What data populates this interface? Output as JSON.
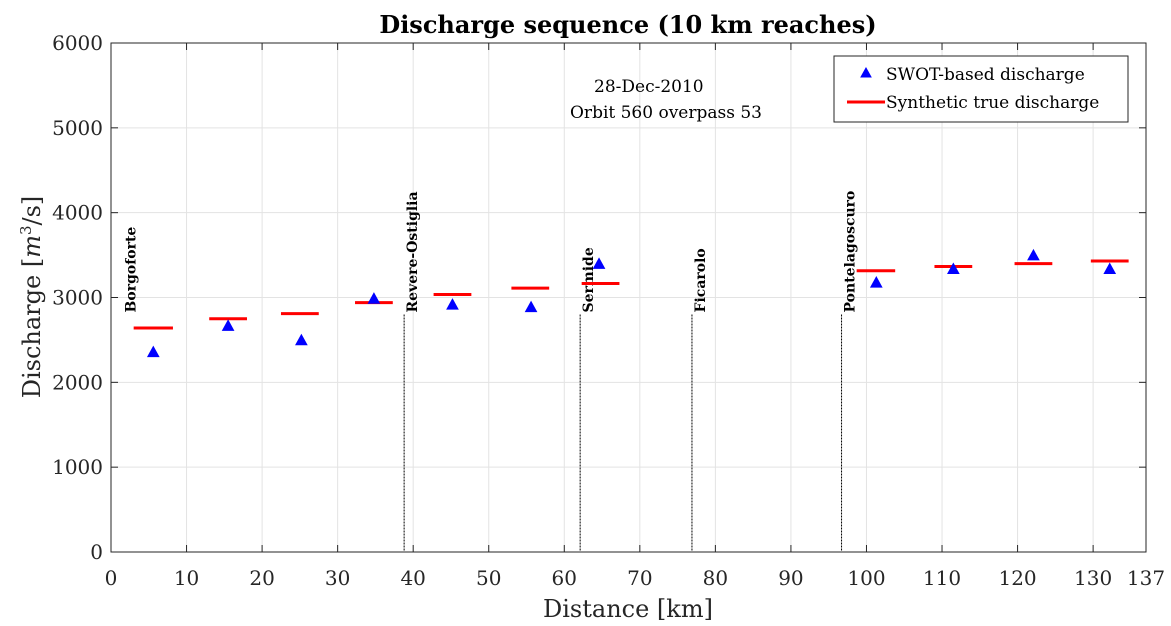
{
  "chart_data": {
    "type": "scatter",
    "title": "Discharge sequence (10 km reaches)",
    "xlabel": "Distance [km]",
    "ylabel": "Discharge [m³/s]",
    "ylabel_prefix": "Discharge [",
    "ylabel_unit": "m",
    "ylabel_sup": "3",
    "ylabel_suffix": "/s]",
    "xlim": [
      0,
      137
    ],
    "ylim": [
      0,
      6000
    ],
    "xticks": [
      0,
      10,
      20,
      30,
      40,
      50,
      60,
      70,
      80,
      90,
      100,
      110,
      120,
      130,
      137
    ],
    "yticks": [
      0,
      1000,
      2000,
      3000,
      4000,
      5000,
      6000
    ],
    "grid": true,
    "legend_position": "top-right",
    "annotation": [
      "28-Dec-2010",
      "Orbit 560 overpass 53"
    ],
    "series": [
      {
        "name": "SWOT-based discharge",
        "marker": "triangle",
        "color": "#0000ff",
        "points": [
          {
            "x": 5.6,
            "y": 2350
          },
          {
            "x": 15.5,
            "y": 2660
          },
          {
            "x": 25.2,
            "y": 2490
          },
          {
            "x": 34.8,
            "y": 2980
          },
          {
            "x": 45.2,
            "y": 2910
          },
          {
            "x": 55.6,
            "y": 2880
          },
          {
            "x": 64.6,
            "y": 3390
          },
          {
            "x": 101.3,
            "y": 3170
          },
          {
            "x": 111.5,
            "y": 3330
          },
          {
            "x": 122.1,
            "y": 3490
          },
          {
            "x": 132.2,
            "y": 3330
          }
        ]
      },
      {
        "name": "Synthetic true discharge",
        "marker": "horizontal-line",
        "color": "#ff0000",
        "segments": [
          {
            "x0": 3,
            "x1": 8.2,
            "y": 2640
          },
          {
            "x0": 13,
            "x1": 18,
            "y": 2750
          },
          {
            "x0": 22.5,
            "x1": 27.5,
            "y": 2810
          },
          {
            "x0": 32.3,
            "x1": 37.3,
            "y": 2940
          },
          {
            "x0": 42.7,
            "x1": 47.7,
            "y": 3035
          },
          {
            "x0": 53,
            "x1": 58,
            "y": 3110
          },
          {
            "x0": 62.3,
            "x1": 67.3,
            "y": 3165
          },
          {
            "x0": 98.7,
            "x1": 103.8,
            "y": 3315
          },
          {
            "x0": 109,
            "x1": 114,
            "y": 3365
          },
          {
            "x0": 119.6,
            "x1": 124.6,
            "y": 3400
          },
          {
            "x0": 129.7,
            "x1": 134.7,
            "y": 3430
          }
        ]
      }
    ],
    "stations": [
      {
        "name": "Borgoforte",
        "x": 1.5,
        "line": false
      },
      {
        "name": "Revere-Ostiglia",
        "x": 38.8,
        "line": true
      },
      {
        "name": "Sermide",
        "x": 62.1,
        "line": true
      },
      {
        "name": "Ficarolo",
        "x": 76.9,
        "line": true
      },
      {
        "name": "Pontelagoscuro",
        "x": 96.7,
        "line": true
      }
    ],
    "station_line_top": 2800
  }
}
